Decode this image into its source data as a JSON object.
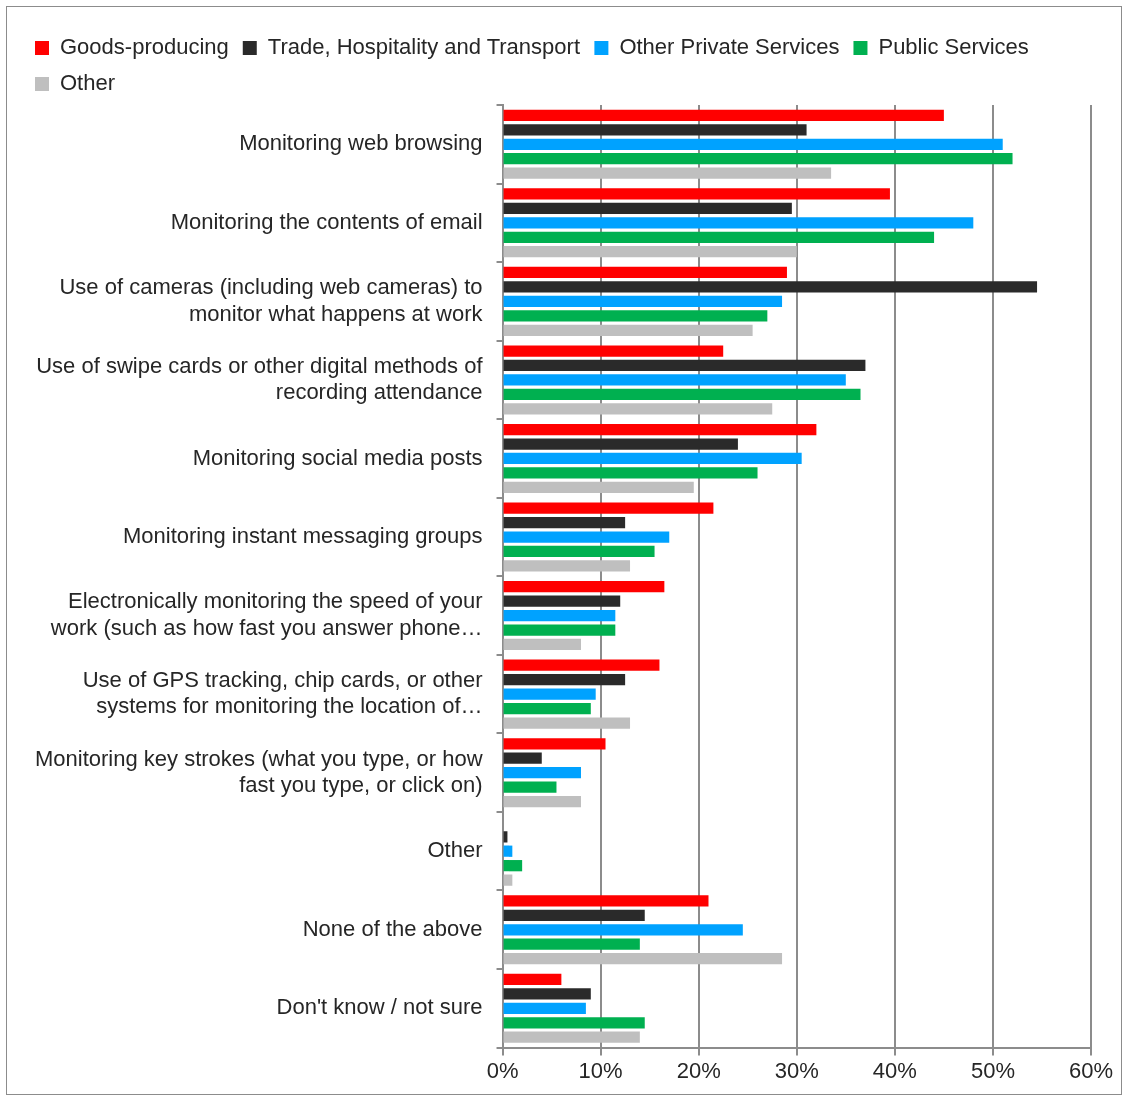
{
  "chart_data": {
    "type": "bar",
    "orientation": "horizontal",
    "categories": [
      "Monitoring web browsing",
      "Monitoring the contents of email",
      "Use of cameras (including web cameras) to monitor what happens at work",
      "Use of swipe cards or other digital methods of recording attendance",
      "Monitoring social media posts",
      "Monitoring instant messaging groups",
      "Electronically monitoring the speed of your work (such as how fast you answer phone…",
      "Use of GPS tracking, chip cards, or other systems for monitoring the location of…",
      "Monitoring key strokes (what you type, or how fast you type, or click on)",
      "Other",
      "None of the above",
      "Don't know / not sure"
    ],
    "series": [
      {
        "name": "Goods-producing",
        "color": "#ff0000",
        "values": [
          45,
          39.5,
          29,
          22.5,
          32,
          21.5,
          16.5,
          16,
          10.5,
          0,
          21,
          6
        ]
      },
      {
        "name": "Trade, Hospitality and Transport",
        "color": "#2a2a2a",
        "values": [
          31,
          29.5,
          54.5,
          37,
          24,
          12.5,
          12,
          12.5,
          4,
          0.5,
          14.5,
          9
        ]
      },
      {
        "name": "Other Private Services",
        "color": "#00a2ff",
        "values": [
          51,
          48,
          28.5,
          35,
          30.5,
          17,
          11.5,
          9.5,
          8,
          1,
          24.5,
          8.5
        ]
      },
      {
        "name": "Public Services",
        "color": "#00b050",
        "values": [
          52,
          44,
          27,
          36.5,
          26,
          15.5,
          11.5,
          9,
          5.5,
          2,
          14,
          14.5
        ]
      },
      {
        "name": "Other",
        "color": "#bfbfbf",
        "values": [
          33.5,
          30,
          25.5,
          27.5,
          19.5,
          13,
          8,
          13,
          8,
          1,
          28.5,
          14
        ]
      }
    ],
    "xlim": [
      0,
      60
    ],
    "xticks": [
      {
        "value": 0,
        "label": "0%"
      },
      {
        "value": 10,
        "label": "10%"
      },
      {
        "value": 20,
        "label": "20%"
      },
      {
        "value": 30,
        "label": "30%"
      },
      {
        "value": 40,
        "label": "40%"
      },
      {
        "value": 50,
        "label": "50%"
      },
      {
        "value": 60,
        "label": "60%"
      }
    ],
    "grid": "x",
    "legend": "top"
  }
}
